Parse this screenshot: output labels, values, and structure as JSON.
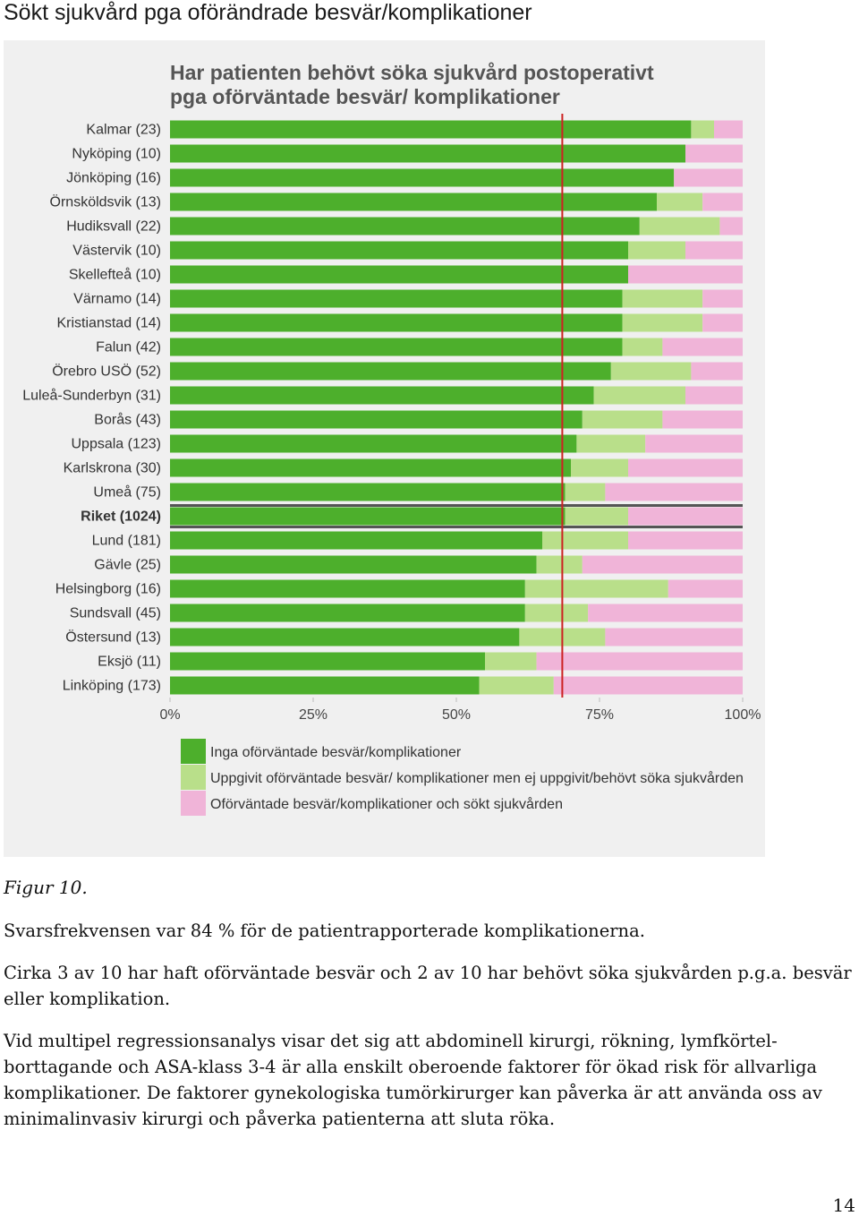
{
  "heading": "Sökt sjukvård pga oförändrade besvär/komplikationer",
  "chart_data": {
    "type": "bar",
    "orientation": "horizontal-stacked-100",
    "title_lines": [
      "Har patienten behövt söka sjukvård postoperativt",
      "pga oförväntade besvär/ komplikationer"
    ],
    "categories": [
      "Kalmar (23)",
      "Nyköping (10)",
      "Jönköping (16)",
      "Örnsköldsvik (13)",
      "Hudiksvall (22)",
      "Västervik (10)",
      "Skellefteå (10)",
      "Värnamo (14)",
      "Kristianstad (14)",
      "Falun (42)",
      "Örebro USÖ (52)",
      "Luleå-Sunderbyn (31)",
      "Borås (43)",
      "Uppsala (123)",
      "Karlskrona (30)",
      "Umeå (75)",
      "Riket (1024)",
      "Lund (181)",
      "Gävle (25)",
      "Helsingborg (16)",
      "Sundsvall (45)",
      "Östersund (13)",
      "Eksjö (11)",
      "Linköping (173)"
    ],
    "highlight_category": "Riket (1024)",
    "series": [
      {
        "name": "Inga oförväntade besvär/komplikationer",
        "color": "#4daf2c",
        "values": [
          91,
          90,
          88,
          85,
          82,
          80,
          80,
          79,
          79,
          79,
          77,
          74,
          72,
          71,
          70,
          69,
          69,
          65,
          64,
          62,
          62,
          61,
          55,
          54
        ]
      },
      {
        "name": "Uppgivit oförväntade besvär/ komplikationer men ej uppgivit/behövt söka sjukvården",
        "color": "#b9df8a",
        "values": [
          4,
          0,
          0,
          8,
          14,
          10,
          0,
          14,
          14,
          7,
          14,
          16,
          14,
          12,
          10,
          7,
          11,
          15,
          8,
          25,
          11,
          15,
          9,
          13
        ]
      },
      {
        "name": "Oförväntade besvär/komplikationer och sökt sjukvården",
        "color": "#f0b4d8",
        "values": [
          5,
          10,
          12,
          7,
          4,
          10,
          20,
          7,
          7,
          14,
          9,
          10,
          14,
          17,
          20,
          24,
          20,
          20,
          28,
          13,
          27,
          24,
          36,
          33
        ]
      }
    ],
    "reference_line": {
      "value": 68.5,
      "color": "#cc2222"
    },
    "x_ticks": [
      "0%",
      "25%",
      "50%",
      "75%",
      "100%"
    ],
    "xlim": [
      0,
      100
    ]
  },
  "caption": "Figur 10.",
  "paragraphs": [
    "Svarsfrekvensen var 84 % för de patientrapporterade komplikationerna.",
    "Cirka 3 av 10 har haft oförväntade besvär och 2 av 10 har behövt söka sjukvården p.g.a. besvär eller komplikation.",
    "Vid multipel regressionsanalys visar det sig att abdominell kirurgi, rökning, lymfkörtel-borttagande och ASA-klass 3-4 är alla enskilt oberoende faktorer för ökad risk för allvarliga komplikationer. De faktorer gynekologiska tumörkirurger kan påverka är att använda oss av minimalinvasiv kirurgi och påverka patienterna att sluta röka."
  ],
  "page_number": "14"
}
